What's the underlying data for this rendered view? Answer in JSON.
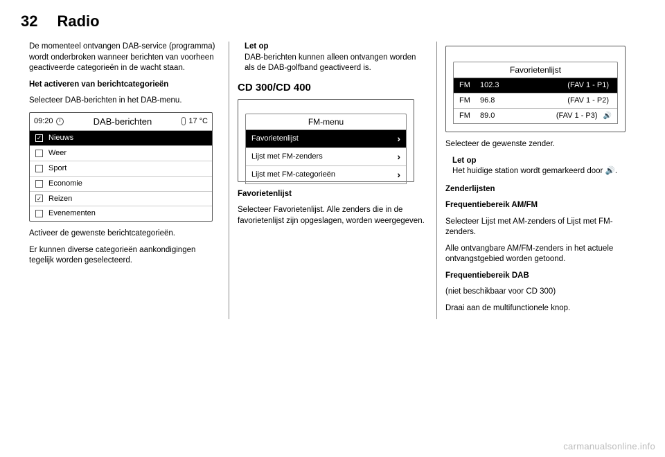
{
  "page_number": "32",
  "chapter": "Radio",
  "col1": {
    "p1": "De momenteel ontvangen DAB-service (programma) wordt onderbroken wanneer berichten van voorheen geactiveerde categorieën in de wacht staan.",
    "p2_bold": "Het activeren van berichtcategorieën",
    "p3": "Selecteer DAB-berichten in het DAB-menu.",
    "p4": "Activeer de gewenste berichtcategorieën.",
    "p5": "Er kunnen diverse categorieën aankondigingen tegelijk worden geselecteerd."
  },
  "screen1": {
    "time": "09:20",
    "title": "DAB-berichten",
    "temp": "17 °C",
    "items": [
      {
        "label": "Nieuws",
        "checked": true,
        "selected": true
      },
      {
        "label": "Weer",
        "checked": false,
        "selected": false
      },
      {
        "label": "Sport",
        "checked": false,
        "selected": false
      },
      {
        "label": "Economie",
        "checked": false,
        "selected": false
      },
      {
        "label": "Reizen",
        "checked": true,
        "selected": false
      },
      {
        "label": "Evenementen",
        "checked": false,
        "selected": false
      }
    ]
  },
  "col2": {
    "note_title": "Let op",
    "note_body": "DAB-berichten kunnen alleen ontvangen worden als de DAB-golfband geactiveerd is.",
    "model": "CD 300/CD 400",
    "fav_heading": "Favorietenlijst",
    "fav_body": "Selecteer Favorietenlijst. Alle zenders die in de favorietenlijst zijn opgeslagen, worden weergegeven."
  },
  "screen2": {
    "title": "FM-menu",
    "rows": [
      {
        "label": "Favorietenlijst",
        "selected": true
      },
      {
        "label": "Lijst met FM-zenders",
        "selected": false
      },
      {
        "label": "Lijst met FM-categorieën",
        "selected": false
      }
    ]
  },
  "screen3": {
    "title": "Favorietenlijst",
    "rows": [
      {
        "band": "FM",
        "freq": "102.3",
        "fav": "(FAV 1 - P1)",
        "selected": true,
        "icon": ""
      },
      {
        "band": "FM",
        "freq": "96.8",
        "fav": "(FAV 1 - P2)",
        "selected": false,
        "icon": ""
      },
      {
        "band": "FM",
        "freq": "89.0",
        "fav": "(FAV 1 - P3)",
        "selected": false,
        "icon": "🔊"
      }
    ]
  },
  "col3": {
    "p1": "Selecteer de gewenste zender.",
    "note_title": "Let op",
    "note_body": "Het huidige station wordt gemarkeerd door 🔊.",
    "h_zender": "Zenderlijsten",
    "h_amfm": "Frequentiebereik AM/FM",
    "p_amfm": "Selecteer Lijst met AM-zenders of Lijst met FM-zenders.",
    "p_amfm2": "Alle ontvangbare AM/FM-zenders in het actuele ontvangstgebied worden getoond.",
    "h_dab": "Frequentiebereik DAB",
    "p_dab1": "(niet beschikbaar voor CD 300)",
    "p_dab2": "Draai aan de multifunctionele knop."
  },
  "watermark": "carmanualsonline.info"
}
